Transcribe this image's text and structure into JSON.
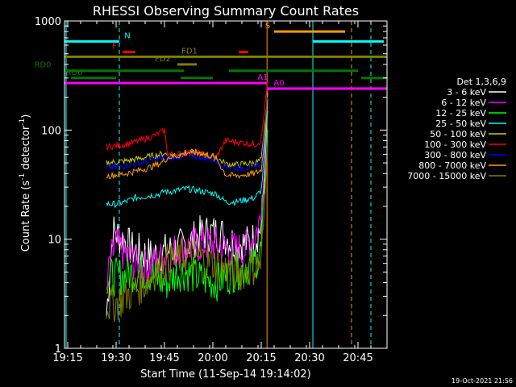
{
  "chart_data": {
    "type": "line",
    "title": "RHESSI Observing Summary Count Rates",
    "xlabel": "Start Time (11-Sep-14 19:14:02)",
    "ylabel_parts": [
      "Count Rate (s",
      "-1",
      " detector",
      "-1",
      ")"
    ],
    "y_scale": "log",
    "ylim": [
      1,
      1000
    ],
    "xlim_minutes": [
      1154,
      1254
    ],
    "x_ticks": [
      {
        "t": 1155,
        "label": "19:15"
      },
      {
        "t": 1170,
        "label": "19:30"
      },
      {
        "t": 1185,
        "label": "19:45"
      },
      {
        "t": 1200,
        "label": "20:00"
      },
      {
        "t": 1215,
        "label": "20:15"
      },
      {
        "t": 1230,
        "label": "20:30"
      },
      {
        "t": 1245,
        "label": "20:45"
      }
    ],
    "y_ticks": [
      {
        "v": 1,
        "label": "1"
      },
      {
        "v": 10,
        "label": "10"
      },
      {
        "v": 100,
        "label": "100"
      },
      {
        "v": 1000,
        "label": "1000"
      }
    ],
    "legend_title": "Det 1,3,6,9",
    "legend_position": "right",
    "series": [
      {
        "name": "3 - 6 keV",
        "color": "#ffffff",
        "points": [
          [
            1167,
            2
          ],
          [
            1168,
            5
          ],
          [
            1169,
            12
          ],
          [
            1172,
            10
          ],
          [
            1175,
            8
          ],
          [
            1178,
            7.5
          ],
          [
            1181,
            7
          ],
          [
            1184,
            7.5
          ],
          [
            1188,
            8
          ],
          [
            1192,
            9
          ],
          [
            1196,
            11
          ],
          [
            1200,
            11.5
          ],
          [
            1203,
            11
          ],
          [
            1206,
            9.5
          ],
          [
            1210,
            9
          ],
          [
            1213,
            10
          ],
          [
            1215,
            13
          ],
          [
            1216,
            35
          ],
          [
            1217,
            200
          ]
        ]
      },
      {
        "name": "6 - 12 keV",
        "color": "#ff00ff",
        "points": [
          [
            1167,
            3
          ],
          [
            1168,
            6
          ],
          [
            1170,
            9
          ],
          [
            1173,
            7
          ],
          [
            1176,
            6
          ],
          [
            1179,
            5.5
          ],
          [
            1182,
            6
          ],
          [
            1185,
            7
          ],
          [
            1189,
            8
          ],
          [
            1193,
            8.5
          ],
          [
            1197,
            9
          ],
          [
            1200,
            9
          ],
          [
            1203,
            8.5
          ],
          [
            1206,
            8
          ],
          [
            1210,
            8
          ],
          [
            1213,
            11
          ],
          [
            1215,
            16
          ],
          [
            1216,
            45
          ],
          [
            1217,
            250
          ]
        ]
      },
      {
        "name": "12 - 25 keV",
        "color": "#00ff00",
        "points": [
          [
            1167,
            4.5
          ],
          [
            1170,
            4.5
          ],
          [
            1173,
            4.7
          ],
          [
            1176,
            5
          ],
          [
            1179,
            5
          ],
          [
            1182,
            4.5
          ],
          [
            1184,
            4
          ],
          [
            1186,
            4
          ],
          [
            1189,
            5
          ],
          [
            1192,
            5
          ],
          [
            1195,
            4.5
          ],
          [
            1198,
            4.2
          ],
          [
            1201,
            4
          ],
          [
            1204,
            4.5
          ],
          [
            1207,
            5
          ],
          [
            1210,
            5.5
          ],
          [
            1213,
            6
          ],
          [
            1215,
            8
          ],
          [
            1216,
            25
          ],
          [
            1217,
            100
          ]
        ]
      },
      {
        "name": "25 - 50 keV",
        "color": "#00ffff",
        "points": [
          [
            1167,
            21
          ],
          [
            1170,
            21
          ],
          [
            1173,
            22
          ],
          [
            1176,
            24
          ],
          [
            1180,
            25
          ],
          [
            1184,
            26
          ],
          [
            1185,
            28
          ],
          [
            1186,
            27
          ],
          [
            1189,
            28
          ],
          [
            1192,
            29
          ],
          [
            1195,
            28
          ],
          [
            1198,
            27
          ],
          [
            1201,
            26
          ],
          [
            1204,
            22
          ],
          [
            1207,
            22
          ],
          [
            1210,
            23
          ],
          [
            1213,
            24
          ],
          [
            1215,
            28
          ],
          [
            1216,
            60
          ],
          [
            1217,
            150
          ]
        ]
      },
      {
        "name": "50 - 100 keV",
        "color": "#cccc00",
        "points": [
          [
            1167,
            50
          ],
          [
            1170,
            51
          ],
          [
            1173,
            52
          ],
          [
            1176,
            54
          ],
          [
            1180,
            57
          ],
          [
            1184,
            60
          ],
          [
            1185,
            62
          ],
          [
            1186,
            58
          ],
          [
            1189,
            60
          ],
          [
            1192,
            62
          ],
          [
            1195,
            61
          ],
          [
            1198,
            59
          ],
          [
            1201,
            56
          ],
          [
            1204,
            49
          ],
          [
            1207,
            48
          ],
          [
            1210,
            49
          ],
          [
            1213,
            50
          ],
          [
            1215,
            53
          ],
          [
            1216,
            100
          ],
          [
            1217,
            220
          ]
        ]
      },
      {
        "name": "100 - 300 keV",
        "color": "#ff0000",
        "points": [
          [
            1167,
            70
          ],
          [
            1170,
            72
          ],
          [
            1173,
            74
          ],
          [
            1176,
            78
          ],
          [
            1180,
            85
          ],
          [
            1184,
            95
          ],
          [
            1185,
            100
          ],
          [
            1186,
            60
          ],
          [
            1189,
            60
          ],
          [
            1192,
            62
          ],
          [
            1195,
            61
          ],
          [
            1198,
            58
          ],
          [
            1201,
            56
          ],
          [
            1204,
            80
          ],
          [
            1207,
            78
          ],
          [
            1210,
            76
          ],
          [
            1213,
            74
          ],
          [
            1215,
            80
          ],
          [
            1216,
            150
          ],
          [
            1217,
            280
          ]
        ]
      },
      {
        "name": "300 - 800 keV",
        "color": "#0000ff",
        "points": [
          [
            1167,
            45
          ],
          [
            1170,
            46
          ],
          [
            1173,
            47
          ],
          [
            1176,
            49
          ],
          [
            1180,
            52
          ],
          [
            1184,
            55
          ],
          [
            1185,
            57
          ],
          [
            1186,
            55
          ],
          [
            1189,
            57
          ],
          [
            1192,
            58
          ],
          [
            1195,
            57
          ],
          [
            1198,
            55
          ],
          [
            1201,
            53
          ],
          [
            1204,
            46
          ],
          [
            1207,
            45
          ],
          [
            1210,
            45
          ],
          [
            1213,
            46
          ],
          [
            1215,
            50
          ],
          [
            1216,
            90
          ],
          [
            1217,
            200
          ]
        ]
      },
      {
        "name": "800 - 7000 keV",
        "color": "#ff9900",
        "points": [
          [
            1167,
            38
          ],
          [
            1170,
            39
          ],
          [
            1173,
            40
          ],
          [
            1176,
            42
          ],
          [
            1180,
            45
          ],
          [
            1184,
            50
          ],
          [
            1185,
            53
          ],
          [
            1186,
            56
          ],
          [
            1189,
            58
          ],
          [
            1192,
            62
          ],
          [
            1195,
            63
          ],
          [
            1198,
            60
          ],
          [
            1201,
            55
          ],
          [
            1204,
            39
          ],
          [
            1207,
            38
          ],
          [
            1210,
            39
          ],
          [
            1213,
            40
          ],
          [
            1215,
            43
          ],
          [
            1216,
            80
          ],
          [
            1217,
            190
          ]
        ]
      },
      {
        "name": "7000 - 15000 keV",
        "color": "#808000",
        "points": [
          [
            1167,
            2.5
          ],
          [
            1170,
            2.6
          ],
          [
            1173,
            3
          ],
          [
            1176,
            3.5
          ],
          [
            1179,
            4
          ],
          [
            1182,
            5
          ],
          [
            1185,
            6
          ],
          [
            1188,
            6.5
          ],
          [
            1191,
            7
          ],
          [
            1194,
            7
          ],
          [
            1197,
            6.5
          ],
          [
            1200,
            6
          ],
          [
            1203,
            5.5
          ],
          [
            1206,
            5
          ],
          [
            1209,
            5
          ],
          [
            1212,
            5.5
          ],
          [
            1215,
            6
          ],
          [
            1216,
            20
          ],
          [
            1217,
            80
          ]
        ]
      }
    ],
    "flag_bars": [
      {
        "label": "N",
        "color": "#00ffff",
        "y": 650,
        "segments": [
          [
            1154,
            1171
          ],
          [
            1231,
            1253
          ]
        ]
      },
      {
        "label": "F",
        "color": "#ff0000",
        "y": 520,
        "segments": [
          [
            1172,
            1176
          ],
          [
            1208,
            1211
          ]
        ]
      },
      {
        "label": "S",
        "color": "#ff9900",
        "y": 800,
        "segments": [
          [
            1219,
            1241
          ]
        ]
      },
      {
        "label": "FD1",
        "color": "#808000",
        "y": 470,
        "segments": [
          [
            1154,
            1254
          ]
        ]
      },
      {
        "label": "FD2",
        "color": "#808000",
        "y": 400,
        "segments": [
          [
            1189,
            1195
          ]
        ]
      },
      {
        "label": "RD0",
        "color": "#007700",
        "y": 350,
        "segments": [
          [
            1154,
            1191
          ],
          [
            1205,
            1245
          ]
        ]
      },
      {
        "label": "RD6",
        "color": "#007700",
        "y": 300,
        "segments": [
          [
            1156,
            1170
          ],
          [
            1190,
            1200
          ],
          [
            1246,
            1254
          ]
        ]
      },
      {
        "label": "A1",
        "color": "#ff00ff",
        "y": 270,
        "segments": [
          [
            1154,
            1217
          ]
        ]
      },
      {
        "label": "A0",
        "color": "#ff00ff",
        "y": 240,
        "segments": [
          [
            1217,
            1254
          ]
        ]
      }
    ],
    "vlines": [
      {
        "t": 1154.5,
        "color": "#00ffff",
        "style": "solid"
      },
      {
        "t": 1171,
        "color": "#00ffff",
        "style": "dashed"
      },
      {
        "t": 1216.8,
        "color": "#ff9900",
        "style": "solid"
      },
      {
        "t": 1231,
        "color": "#00ffff",
        "style": "solid"
      },
      {
        "t": 1243,
        "color": "#ff9900",
        "style": "dashed"
      },
      {
        "t": 1249,
        "color": "#00ffff",
        "style": "dashed"
      }
    ],
    "footer_date": "19-Oct-2021 21:56"
  }
}
